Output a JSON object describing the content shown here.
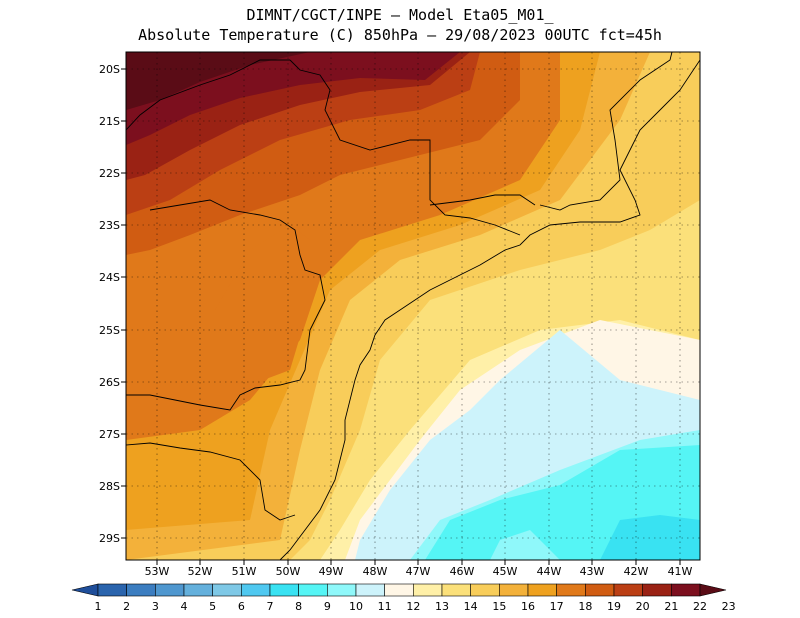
{
  "title": {
    "line1": "DIMNT/CGCT/INPE –  Model Eta05_M01_",
    "line2": "Absolute Temperature (C) 850hPa –  29/08/2023 00UTC fct=45h"
  },
  "map": {
    "lat_labels": [
      "20S",
      "21S",
      "22S",
      "23S",
      "24S",
      "25S",
      "26S",
      "27S",
      "28S",
      "29S"
    ],
    "lon_labels": [
      "53W",
      "52W",
      "51W",
      "50W",
      "49W",
      "48W",
      "47W",
      "46W",
      "45W",
      "44W",
      "43W",
      "42W",
      "41W"
    ]
  },
  "colorbar": {
    "labels": [
      "1",
      "2",
      "3",
      "4",
      "5",
      "6",
      "7",
      "8",
      "9",
      "10",
      "11",
      "12",
      "13",
      "14",
      "15",
      "16",
      "17",
      "18",
      "19",
      "20",
      "21",
      "22",
      "23"
    ],
    "colors": [
      "#1f4e9a",
      "#2a64ad",
      "#3b7dc0",
      "#4f97cf",
      "#64b0dc",
      "#7ec8e6",
      "#4fc8f0",
      "#39e2f2",
      "#55f5f5",
      "#8ff8fa",
      "#cdf3fb",
      "#fff6e6",
      "#fff0a8",
      "#fbe07a",
      "#f8cd5a",
      "#f3b13a",
      "#eea11f",
      "#e0791a",
      "#d05c12",
      "#bb3f14",
      "#9a2214",
      "#7c0f1e",
      "#5a0c16"
    ]
  }
}
